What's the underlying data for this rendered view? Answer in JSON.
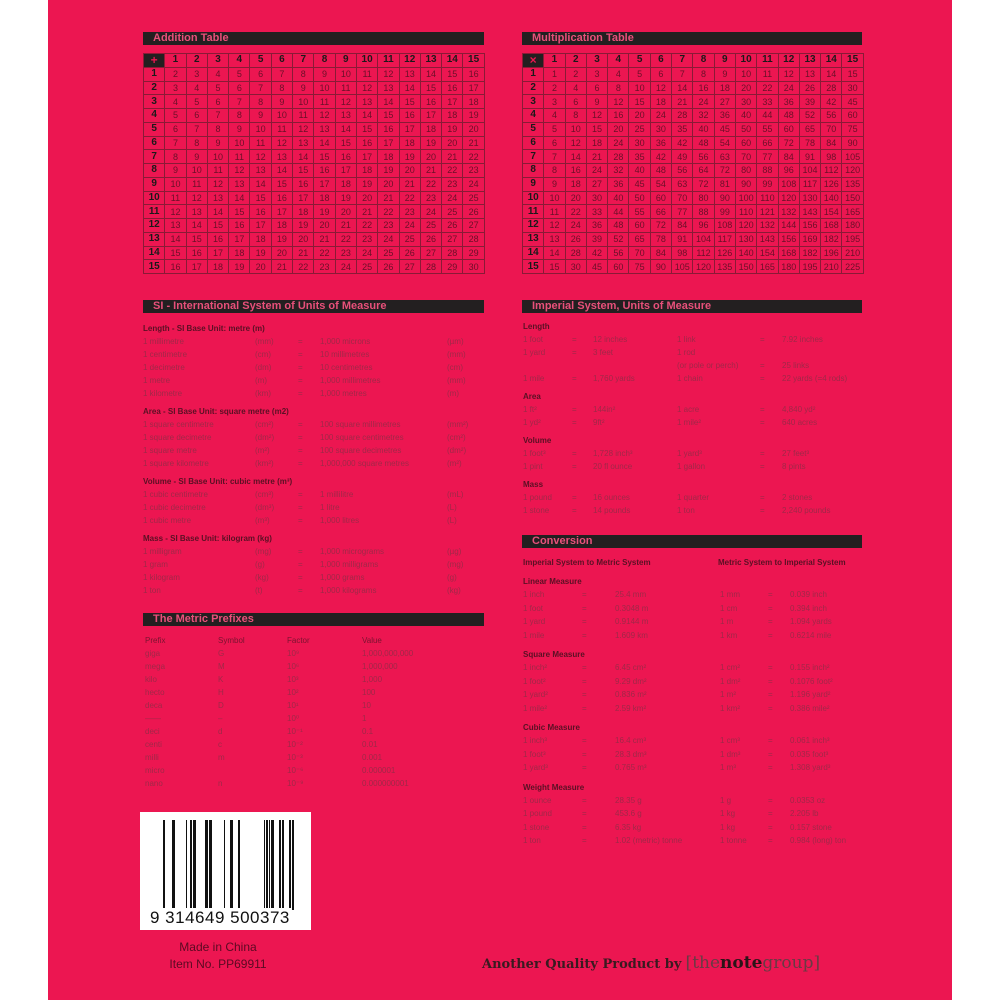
{
  "colors": {
    "cover": "#ec1651",
    "bar": "#231f20"
  },
  "addition": {
    "title": "Addition Table",
    "symbol": "+",
    "operands": [
      1,
      2,
      3,
      4,
      5,
      6,
      7,
      8,
      9,
      10,
      11,
      12,
      13,
      14,
      15
    ]
  },
  "multiplication": {
    "title": "Multiplication Table",
    "symbol": "×",
    "operands": [
      1,
      2,
      3,
      4,
      5,
      6,
      7,
      8,
      9,
      10,
      11,
      12,
      13,
      14,
      15
    ]
  },
  "si": {
    "title": "SI - International System of Units of Measure",
    "groups": [
      {
        "heading": "Length - SI Base Unit: metre (m)",
        "rows": [
          [
            "1 millimetre",
            "(mm)",
            "=",
            "1,000 microns",
            "(µm)"
          ],
          [
            "1 centimetre",
            "(cm)",
            "=",
            "10 millimetres",
            "(mm)"
          ],
          [
            "1 decimetre",
            "(dm)",
            "=",
            "10 centimetres",
            "(cm)"
          ],
          [
            "1 metre",
            "(m)",
            "=",
            "1,000 millimetres",
            "(mm)"
          ],
          [
            "1 kilometre",
            "(km)",
            "=",
            "1,000 metres",
            "(m)"
          ]
        ]
      },
      {
        "heading": "Area - SI Base Unit: square metre (m2)",
        "rows": [
          [
            "1 square centimetre",
            "(cm²)",
            "=",
            "100 square millimetres",
            "(mm²)"
          ],
          [
            "1 square decimetre",
            "(dm²)",
            "=",
            "100 square centimetres",
            "(cm²)"
          ],
          [
            "1 square metre",
            "(m²)",
            "=",
            "100 square decimetres",
            "(dm²)"
          ],
          [
            "1 square kilometre",
            "(km²)",
            "=",
            "1,000,000 square metres",
            "(m²)"
          ]
        ]
      },
      {
        "heading": "Volume - SI Base Unit: cubic metre (m³)",
        "rows": [
          [
            "1 cubic centimetre",
            "(cm³)",
            "=",
            "1 millilitre",
            "(mL)"
          ],
          [
            "1 cubic decimetre",
            "(dm³)",
            "=",
            "1 litre",
            "(L)"
          ],
          [
            "1 cubic metre",
            "(m³)",
            "=",
            "1,000 litres",
            "(L)"
          ]
        ]
      },
      {
        "heading": "Mass - SI Base Unit: kilogram (kg)",
        "rows": [
          [
            "1 milligram",
            "(mg)",
            "=",
            "1,000 micrograms",
            "(µg)"
          ],
          [
            "1 gram",
            "(g)",
            "=",
            "1,000 milligrams",
            "(mg)"
          ],
          [
            "1 kilogram",
            "(kg)",
            "=",
            "1,000 grams",
            "(g)"
          ],
          [
            "1 ton",
            "(t)",
            "=",
            "1,000 kilograms",
            "(kg)"
          ]
        ]
      }
    ]
  },
  "prefixes": {
    "title": "The Metric Prefixes",
    "headers": [
      "Prefix",
      "Symbol",
      "Factor",
      "Value"
    ],
    "rows": [
      [
        "giga",
        "G",
        "10⁹",
        "1,000,000,000"
      ],
      [
        "mega",
        "M",
        "10⁶",
        "1,000,000"
      ],
      [
        "kilo",
        "K",
        "10³",
        "1,000"
      ],
      [
        "hecto",
        "H",
        "10²",
        "100"
      ],
      [
        "deca",
        "D",
        "10¹",
        "10"
      ],
      [
        "——",
        "–",
        "10⁰",
        "1"
      ],
      [
        "deci",
        "d",
        "10⁻¹",
        "0.1"
      ],
      [
        "centi",
        "c",
        "10⁻²",
        "0.01"
      ],
      [
        "milli",
        "m",
        "10⁻³",
        "0.001"
      ],
      [
        "micro",
        "",
        "10⁻⁶",
        "0.000001"
      ],
      [
        "nano",
        "n",
        "10⁻⁹",
        "0.000000001"
      ]
    ]
  },
  "imperial": {
    "title": "Imperial System, Units of Measure",
    "groups": [
      {
        "heading": "Length",
        "rows": [
          [
            "1 foot",
            "=",
            "12 inches",
            "1 link",
            "=",
            "7.92 inches"
          ],
          [
            "1 yard",
            "=",
            "3 feet",
            "1 rod",
            "",
            ""
          ],
          [
            "",
            "",
            "",
            "(or pole or perch)",
            "=",
            "25 links"
          ],
          [
            "1 mile",
            "=",
            "1,760 yards",
            "1 chain",
            "=",
            "22 yards (=4 rods)"
          ]
        ]
      },
      {
        "heading": "Area",
        "rows": [
          [
            "1 ft²",
            "=",
            "144in²",
            "1 acre",
            "=",
            "4,840 yd²"
          ],
          [
            "1 yd²",
            "=",
            "9ft²",
            "1 mile²",
            "=",
            "640 acres"
          ]
        ]
      },
      {
        "heading": "Volume",
        "rows": [
          [
            "1 foot³",
            "=",
            "1,728 inch³",
            "1 yard³",
            "=",
            "27 feet³"
          ],
          [
            "1 pint",
            "=",
            "20 fl ounce",
            "1 gallon",
            "=",
            "8 pints"
          ]
        ]
      },
      {
        "heading": "Mass",
        "rows": [
          [
            "1 pound",
            "=",
            "16 ounces",
            "1 quarter",
            "=",
            "2 stones"
          ],
          [
            "1 stone",
            "=",
            "14 pounds",
            "1 ton",
            "=",
            "2,240 pounds"
          ]
        ]
      }
    ]
  },
  "conversion": {
    "title": "Conversion",
    "sub_left": "Imperial System to Metric System",
    "sub_right": "Metric System to Imperial System",
    "groups": [
      {
        "heading": "Linear Measure",
        "rows": [
          [
            "1 inch",
            "=",
            "25.4 mm",
            "1 mm",
            "=",
            "0.039 inch"
          ],
          [
            "1 foot",
            "=",
            "0.3048 m",
            "1 cm",
            "=",
            "0.394 inch"
          ],
          [
            "1 yard",
            "=",
            "0.9144 m",
            "1 m",
            "=",
            "1.094 yards"
          ],
          [
            "1 mile",
            "=",
            "1.609 km",
            "1 km",
            "=",
            "0.6214 mile"
          ]
        ]
      },
      {
        "heading": "Square Measure",
        "rows": [
          [
            "1 inch²",
            "=",
            "6.45 cm²",
            "1 cm²",
            "=",
            "0.155 inch²"
          ],
          [
            "1 foot²",
            "=",
            "9.29 dm²",
            "1 dm²",
            "=",
            "0.1076 foot²"
          ],
          [
            "1 yard²",
            "=",
            "0.836 m²",
            "1 m²",
            "=",
            "1.196 yard²"
          ],
          [
            "1 mile²",
            "=",
            "2.59 km²",
            "1 km²",
            "=",
            "0.386 mile²"
          ]
        ]
      },
      {
        "heading": "Cubic Measure",
        "rows": [
          [
            "1 inch³",
            "=",
            "16.4 cm³",
            "1 cm³",
            "=",
            "0.061 inch³"
          ],
          [
            "1 foot³",
            "=",
            "28.3 dm³",
            "1 dm³",
            "=",
            "0.035 foot³"
          ],
          [
            "1 yard³",
            "=",
            "0.765 m³",
            "1 m³",
            "=",
            "1.308 yard³"
          ]
        ]
      },
      {
        "heading": "Weight Measure",
        "rows": [
          [
            "1 ounce",
            "=",
            "28.35 g",
            "1 g",
            "=",
            "0.0353 oz"
          ],
          [
            "1 pound",
            "=",
            "453.6 g",
            "1 kg",
            "=",
            "2.205 lb"
          ],
          [
            "1 stone",
            "=",
            "6.35 kg",
            "1 kg",
            "=",
            "0.157 stone"
          ],
          [
            "1 ton",
            "=",
            "1.02 (metric) tonne",
            "1 tonne",
            "=",
            "0.984 (long) ton"
          ]
        ]
      }
    ]
  },
  "barcode": {
    "number": "9 314649 500373"
  },
  "footer": {
    "made_in": "Made in China",
    "item_no": "Item No. PP69911",
    "tagline": "Another Quality Product by",
    "brand": {
      "open": "[",
      "the": "the",
      "note": "note",
      "group": "group",
      "close": "]"
    }
  }
}
